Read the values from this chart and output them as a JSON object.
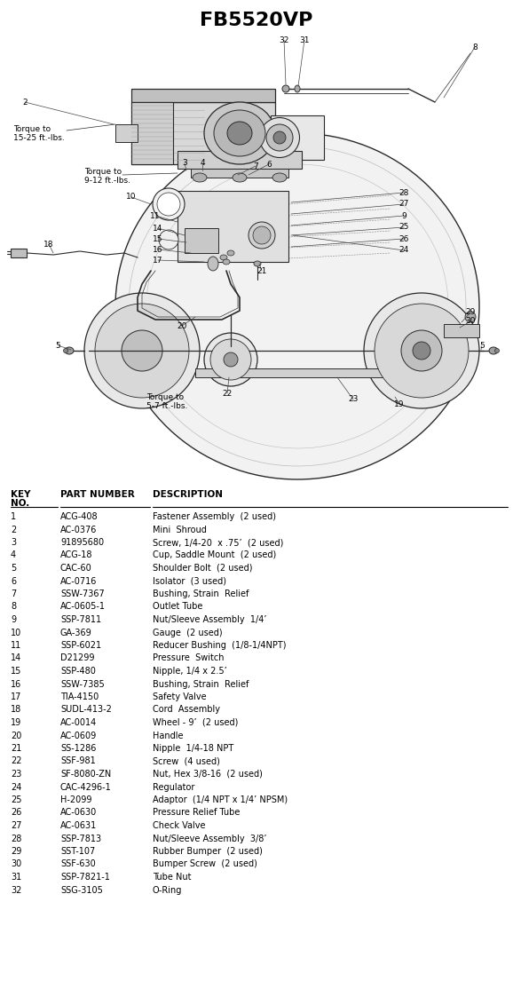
{
  "title": "FB5520VP",
  "bg_color": "#ffffff",
  "line_color": "#2a2a2a",
  "parts": [
    {
      "key": "1",
      "part": "ACG-408",
      "desc": "Fastener Assembly  (2 used)"
    },
    {
      "key": "2",
      "part": "AC-0376",
      "desc": "Mini  Shroud"
    },
    {
      "key": "3",
      "part": "91895680",
      "desc": "Screw, 1/4-20  x .75’  (2 used)"
    },
    {
      "key": "4",
      "part": "ACG-18",
      "desc": "Cup, Saddle Mount  (2 used)"
    },
    {
      "key": "5",
      "part": "CAC-60",
      "desc": "Shoulder Bolt  (2 used)"
    },
    {
      "key": "6",
      "part": "AC-0716",
      "desc": "Isolator  (3 used)"
    },
    {
      "key": "7",
      "part": "SSW-7367",
      "desc": "Bushing, Strain  Relief"
    },
    {
      "key": "8",
      "part": "AC-0605-1",
      "desc": "Outlet Tube"
    },
    {
      "key": "9",
      "part": "SSP-7811",
      "desc": "Nut/Sleeve Assembly  1/4’"
    },
    {
      "key": "10",
      "part": "GA-369",
      "desc": "Gauge  (2 used)"
    },
    {
      "key": "11",
      "part": "SSP-6021",
      "desc": "Reducer Bushing  (1/8-1/4NPT)"
    },
    {
      "key": "14",
      "part": "D21299",
      "desc": "Pressure  Switch"
    },
    {
      "key": "15",
      "part": "SSP-480",
      "desc": "Nipple, 1/4 x 2.5’"
    },
    {
      "key": "16",
      "part": "SSW-7385",
      "desc": "Bushing, Strain  Relief"
    },
    {
      "key": "17",
      "part": "TIA-4150",
      "desc": "Safety Valve"
    },
    {
      "key": "18",
      "part": "SUDL-413-2",
      "desc": "Cord  Assembly"
    },
    {
      "key": "19",
      "part": "AC-0014",
      "desc": "Wheel - 9’  (2 used)"
    },
    {
      "key": "20",
      "part": "AC-0609",
      "desc": "Handle"
    },
    {
      "key": "21",
      "part": "SS-1286",
      "desc": "Nipple  1/4-18 NPT"
    },
    {
      "key": "22",
      "part": "SSF-981",
      "desc": "Screw  (4 used)"
    },
    {
      "key": "23",
      "part": "SF-8080-ZN",
      "desc": "Nut, Hex 3/8-16  (2 used)"
    },
    {
      "key": "24",
      "part": "CAC-4296-1",
      "desc": "Regulator"
    },
    {
      "key": "25",
      "part": "H-2099",
      "desc": "Adaptor  (1/4 NPT x 1/4’ NPSM)"
    },
    {
      "key": "26",
      "part": "AC-0630",
      "desc": "Pressure Relief Tube"
    },
    {
      "key": "27",
      "part": "AC-0631",
      "desc": "Check Valve"
    },
    {
      "key": "28",
      "part": "SSP-7813",
      "desc": "Nut/Sleeve Assembly  3/8’"
    },
    {
      "key": "29",
      "part": "SST-107",
      "desc": "Rubber Bumper  (2 used)"
    },
    {
      "key": "30",
      "part": "SSF-630",
      "desc": "Bumper Screw  (2 used)"
    },
    {
      "key": "31",
      "part": "SSP-7821-1",
      "desc": "Tube Nut"
    },
    {
      "key": "32",
      "part": "SSG-3105",
      "desc": "O-Ring"
    }
  ]
}
